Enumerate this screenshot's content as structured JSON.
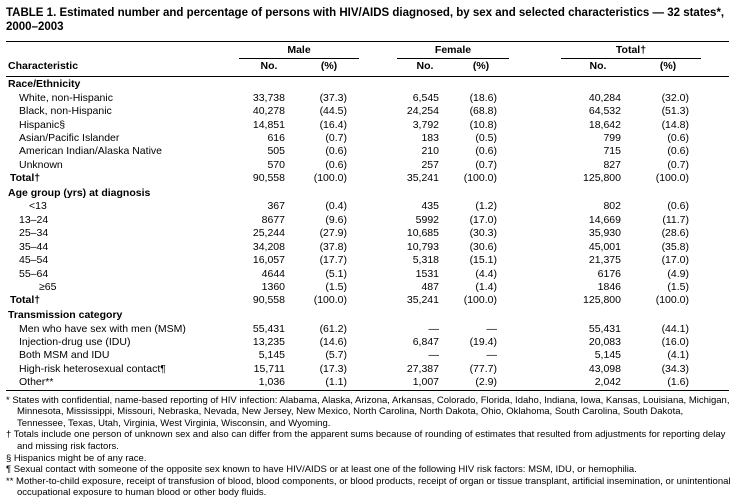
{
  "colors": {
    "text": "#000000",
    "background": "#ffffff",
    "rule": "#000000"
  },
  "title": "TABLE 1. Estimated number and percentage of persons with HIV/AIDS diagnosed, by sex and selected characteristics — 32 states*, 2000–2003",
  "table": {
    "characteristic_header": "Characteristic",
    "groups": [
      {
        "label": "Male"
      },
      {
        "label": "Female"
      },
      {
        "label": "Total†"
      }
    ],
    "subheaders": {
      "no": "No.",
      "pct": "(%)"
    },
    "sections": [
      {
        "name": "Race/Ethnicity",
        "rows": [
          {
            "label": "White, non-Hispanic",
            "cells": [
              "33,738",
              "(37.3)",
              "6,545",
              "(18.6)",
              "40,284",
              "(32.0)"
            ]
          },
          {
            "label": "Black, non-Hispanic",
            "cells": [
              "40,278",
              "(44.5)",
              "24,254",
              "(68.8)",
              "64,532",
              "(51.3)"
            ]
          },
          {
            "label": "Hispanic§",
            "cells": [
              "14,851",
              "(16.4)",
              "3,792",
              "(10.8)",
              "18,642",
              "(14.8)"
            ]
          },
          {
            "label": "Asian/Pacific Islander",
            "cells": [
              "616",
              "(0.7)",
              "183",
              "(0.5)",
              "799",
              "(0.6)"
            ]
          },
          {
            "label": "American Indian/Alaska Native",
            "cells": [
              "505",
              "(0.6)",
              "210",
              "(0.6)",
              "715",
              "(0.6)"
            ]
          },
          {
            "label": "Unknown",
            "cells": [
              "570",
              "(0.6)",
              "257",
              "(0.7)",
              "827",
              "(0.7)"
            ]
          },
          {
            "label": "Total†",
            "bold": true,
            "cells": [
              "90,558",
              "(100.0)",
              "35,241",
              "(100.0)",
              "125,800",
              "(100.0)"
            ]
          }
        ]
      },
      {
        "name": "Age group (yrs) at diagnosis",
        "rows": [
          {
            "label": "<13",
            "indent": 1,
            "cells": [
              "367",
              "(0.4)",
              "435",
              "(1.2)",
              "802",
              "(0.6)"
            ]
          },
          {
            "label": "13–24",
            "cells": [
              "8677",
              "(9.6)",
              "5992",
              "(17.0)",
              "14,669",
              "(11.7)"
            ]
          },
          {
            "label": "25–34",
            "cells": [
              "25,244",
              "(27.9)",
              "10,685",
              "(30.3)",
              "35,930",
              "(28.6)"
            ]
          },
          {
            "label": "35–44",
            "cells": [
              "34,208",
              "(37.8)",
              "10,793",
              "(30.6)",
              "45,001",
              "(35.8)"
            ]
          },
          {
            "label": "45–54",
            "cells": [
              "16,057",
              "(17.7)",
              "5,318",
              "(15.1)",
              "21,375",
              "(17.0)"
            ]
          },
          {
            "label": "55–64",
            "cells": [
              "4644",
              "(5.1)",
              "1531",
              "(4.4)",
              "6176",
              "(4.9)"
            ]
          },
          {
            "label": "≥65",
            "indent": 2,
            "cells": [
              "1360",
              "(1.5)",
              "487",
              "(1.4)",
              "1846",
              "(1.5)"
            ]
          },
          {
            "label": "Total†",
            "bold": true,
            "cells": [
              "90,558",
              "(100.0)",
              "35,241",
              "(100.0)",
              "125,800",
              "(100.0)"
            ]
          }
        ]
      },
      {
        "name": "Transmission category",
        "rows": [
          {
            "label": "Men who have sex with men (MSM)",
            "cells": [
              "55,431",
              "(61.2)",
              "—",
              "—",
              "55,431",
              "(44.1)"
            ]
          },
          {
            "label": "Injection-drug use (IDU)",
            "cells": [
              "13,235",
              "(14.6)",
              "6,847",
              "(19.4)",
              "20,083",
              "(16.0)"
            ]
          },
          {
            "label": "Both MSM and IDU",
            "cells": [
              "5,145",
              "(5.7)",
              "—",
              "—",
              "5,145",
              "(4.1)"
            ]
          },
          {
            "label": "High-risk heterosexual contact¶",
            "cells": [
              "15,711",
              "(17.3)",
              "27,387",
              "(77.7)",
              "43,098",
              "(34.3)"
            ]
          },
          {
            "label": "Other**",
            "cells": [
              "1,036",
              "(1.1)",
              "1,007",
              "(2.9)",
              "2,042",
              "(1.6)"
            ]
          }
        ]
      }
    ]
  },
  "footnotes": [
    "* States with confidential, name-based reporting of HIV infection: Alabama, Alaska, Arizona, Arkansas, Colorado, Florida, Idaho, Indiana, Iowa, Kansas, Louisiana, Michigan, Minnesota, Mississippi, Missouri, Nebraska, Nevada, New Jersey, New Mexico, North Carolina, North Dakota, Ohio, Oklahoma, South Carolina, South Dakota, Tennessee, Texas, Utah, Virginia, West Virginia, Wisconsin, and Wyoming.",
    "† Totals include one person of unknown sex and also can differ from the apparent sums because of rounding of estimates that resulted from adjustments for reporting delay and missing risk factors.",
    "§ Hispanics might be of any race.",
    "¶ Sexual contact with someone of the opposite sex known to have HIV/AIDS or at least one of the following HIV risk factors: MSM, IDU, or hemophilia.",
    "** Mother-to-child exposure, receipt of transfusion of blood, blood components, or blood products, receipt of organ or tissue transplant, artificial insemination, or unintentional occupational exposure to human blood or other body fluids."
  ]
}
